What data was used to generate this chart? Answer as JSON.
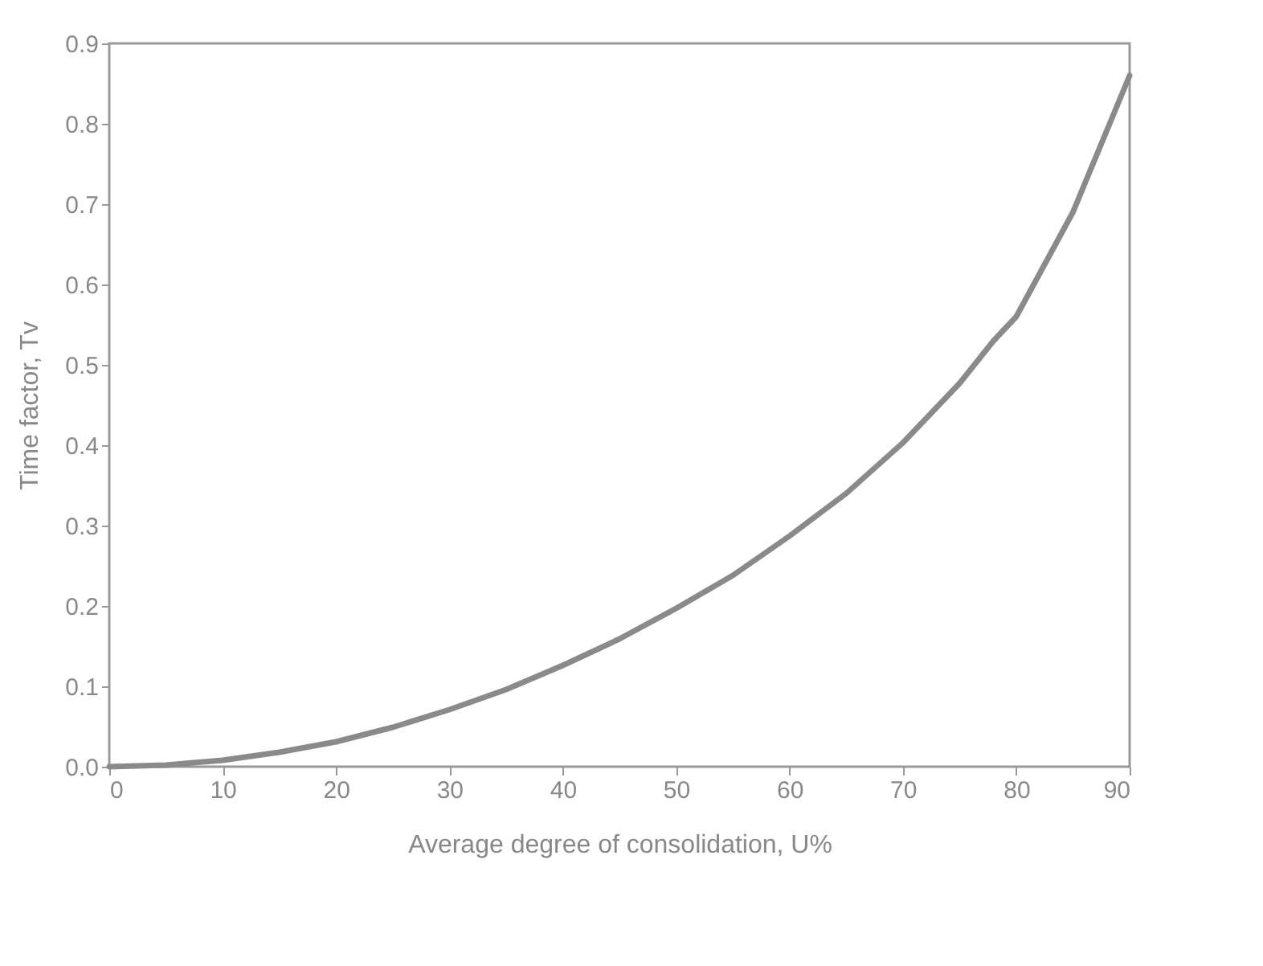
{
  "chart_data": {
    "type": "line",
    "xlabel": "Average degree of consolidation, U%",
    "ylabel": "Time factor, Tv",
    "x": [
      0,
      5,
      10,
      15,
      20,
      25,
      30,
      35,
      40,
      45,
      50,
      55,
      60,
      65,
      70,
      75,
      78,
      80,
      85,
      90
    ],
    "series": [
      {
        "color": "#8a8a8a",
        "values": [
          0,
          0.002,
          0.008,
          0.018,
          0.031,
          0.049,
          0.071,
          0.096,
          0.126,
          0.159,
          0.197,
          0.238,
          0.287,
          0.34,
          0.403,
          0.477,
          0.53,
          0.56,
          0.69,
          0.86
        ]
      }
    ],
    "xlim": [
      0,
      90
    ],
    "xticks": [
      0,
      10,
      20,
      30,
      40,
      50,
      60,
      70,
      80,
      90
    ],
    "ylim": [
      0,
      0.9
    ],
    "yticks": [
      {
        "value": 0,
        "label": "0.0"
      },
      {
        "value": 0.1,
        "label": "0.1"
      },
      {
        "value": 0.2,
        "label": "0.2"
      },
      {
        "value": 0.3,
        "label": "0.3"
      },
      {
        "value": 0.4,
        "label": "0.4"
      },
      {
        "value": 0.5,
        "label": "0.5"
      },
      {
        "value": 0.6,
        "label": "0.6"
      },
      {
        "value": 0.7,
        "label": "0.7"
      },
      {
        "value": 0.8,
        "label": "0.8"
      },
      {
        "value": 0.9,
        "label": "0.9"
      }
    ],
    "grid": false,
    "legend": false,
    "marker": "none",
    "line_style": "solid"
  }
}
